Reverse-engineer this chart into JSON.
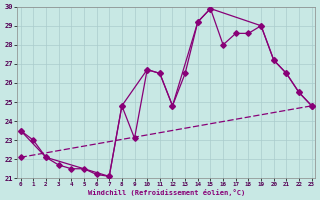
{
  "xlabel": "Windchill (Refroidissement éolien,°C)",
  "background_color": "#c8e8e4",
  "line_color": "#880077",
  "xlim_min": -0.3,
  "xlim_max": 23.3,
  "ylim_min": 21,
  "ylim_max": 30,
  "xticks": [
    0,
    1,
    2,
    3,
    4,
    5,
    6,
    7,
    8,
    9,
    10,
    11,
    12,
    13,
    14,
    15,
    16,
    17,
    18,
    19,
    20,
    21,
    22,
    23
  ],
  "yticks": [
    21,
    22,
    23,
    24,
    25,
    26,
    27,
    28,
    29,
    30
  ],
  "line1_x": [
    0,
    1,
    2,
    3,
    4,
    5,
    6,
    7,
    8,
    9,
    10,
    11,
    12,
    13,
    14,
    15,
    16,
    17,
    18,
    19,
    20,
    21,
    22,
    23
  ],
  "line1_y": [
    23.5,
    23.0,
    22.1,
    21.7,
    21.5,
    21.5,
    21.2,
    21.1,
    24.8,
    23.1,
    26.7,
    26.5,
    24.8,
    26.5,
    29.2,
    29.9,
    28.0,
    28.6,
    28.6,
    29.0,
    27.2,
    26.5,
    25.5,
    24.8
  ],
  "line2_x": [
    0,
    2,
    7,
    8,
    10,
    11,
    12,
    14,
    15,
    19,
    20,
    21,
    22,
    23
  ],
  "line2_y": [
    23.5,
    22.1,
    21.1,
    24.8,
    26.7,
    26.5,
    24.8,
    29.2,
    29.9,
    29.0,
    27.2,
    26.5,
    25.5,
    24.8
  ],
  "line3_x": [
    0,
    23
  ],
  "line3_y": [
    22.1,
    24.8
  ],
  "grid_color": "#aacccc",
  "marker": "D",
  "markersize": 2.8,
  "lw": 0.9
}
